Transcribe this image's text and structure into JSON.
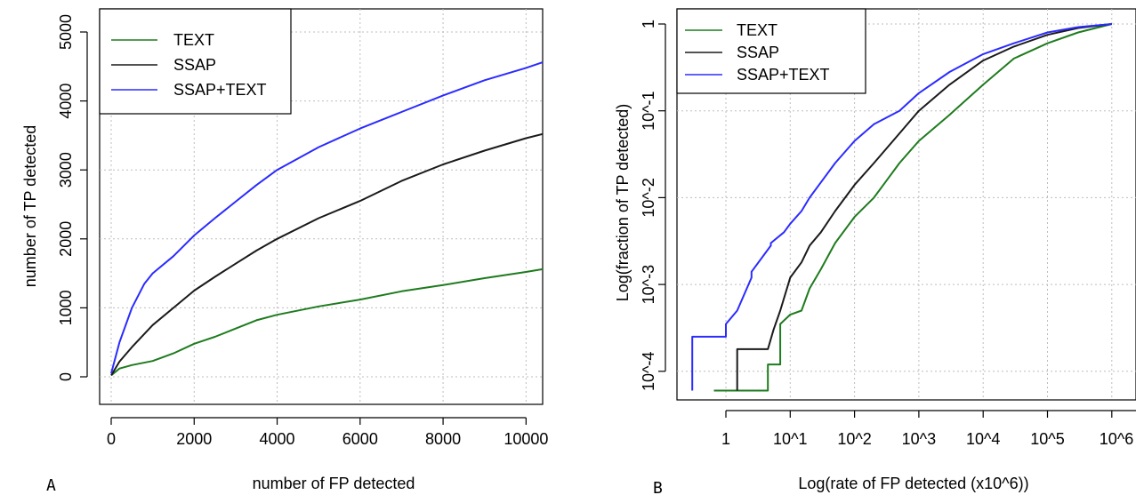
{
  "colors": {
    "text": "#1e7b1e",
    "ssap": "#1a1a1a",
    "ssap_text": "#2b2bff",
    "grid": "#bdbdbd"
  },
  "chart_data": [
    {
      "panel": "A",
      "type": "line",
      "title": "",
      "xlabel": "number of FP detected",
      "ylabel": "number of TP detected",
      "xlim": [
        0,
        10400
      ],
      "ylim": [
        -100,
        5150
      ],
      "xticks": [
        0,
        2000,
        4000,
        6000,
        8000,
        10000
      ],
      "xtick_labels": [
        "0",
        "2000",
        "4000",
        "6000",
        "8000",
        "10000"
      ],
      "yticks": [
        0,
        1000,
        2000,
        3000,
        4000,
        5000
      ],
      "ytick_labels": [
        "0",
        "1000",
        "2000",
        "3000",
        "4000",
        "5000"
      ],
      "grid": true,
      "legend_position": "top-left",
      "series": [
        {
          "name": "TEXT",
          "color_key": "text",
          "x": [
            0,
            200,
            500,
            1000,
            1500,
            2000,
            2500,
            3000,
            3500,
            4000,
            5000,
            6000,
            7000,
            8000,
            9000,
            10000,
            10400
          ],
          "y": [
            20,
            120,
            170,
            230,
            340,
            480,
            580,
            700,
            820,
            900,
            1020,
            1120,
            1240,
            1330,
            1430,
            1520,
            1560
          ]
        },
        {
          "name": "SSAP",
          "color_key": "ssap",
          "x": [
            0,
            200,
            500,
            1000,
            1500,
            2000,
            2500,
            3000,
            3500,
            4000,
            5000,
            6000,
            7000,
            8000,
            9000,
            10000,
            10400
          ],
          "y": [
            20,
            220,
            430,
            750,
            1000,
            1250,
            1450,
            1640,
            1830,
            2000,
            2300,
            2550,
            2840,
            3080,
            3280,
            3460,
            3520
          ]
        },
        {
          "name": "SSAP+TEXT",
          "color_key": "ssap_text",
          "x": [
            0,
            200,
            500,
            800,
            1000,
            1500,
            2000,
            2500,
            3000,
            3500,
            4000,
            5000,
            6000,
            7000,
            8000,
            9000,
            10000,
            10400
          ],
          "y": [
            50,
            500,
            1000,
            1350,
            1500,
            1750,
            2050,
            2300,
            2540,
            2780,
            3000,
            3330,
            3600,
            3840,
            4080,
            4300,
            4480,
            4560
          ]
        }
      ],
      "legend": [
        "TEXT",
        "SSAP",
        "SSAP+TEXT"
      ],
      "panel_label": "A"
    },
    {
      "panel": "B",
      "type": "line",
      "title": "",
      "xlabel": "Log(rate of FP detected (x10^6))",
      "ylabel": "Log(fraction of TP detected)",
      "x_scale": "log10",
      "y_scale": "log10",
      "xlim": [
        0.2,
        1000000
      ],
      "ylim": [
        5e-05,
        1.0
      ],
      "xticks": [
        1,
        10,
        100,
        1000,
        10000,
        100000,
        1000000
      ],
      "xtick_labels": [
        "1",
        "10^1",
        "10^2",
        "10^3",
        "10^4",
        "10^5",
        "10^6"
      ],
      "yticks": [
        0.0001,
        0.001,
        0.01,
        0.1,
        1
      ],
      "ytick_labels": [
        "10^-4",
        "10^-3",
        "10^-2",
        "10^-1",
        "1"
      ],
      "grid": true,
      "legend_position": "top-left",
      "series": [
        {
          "name": "TEXT",
          "color_key": "text",
          "x": [
            0.65,
            1,
            2,
            4.5,
            4.5,
            7,
            7,
            10,
            15,
            20,
            30,
            50,
            100,
            200,
            300,
            500,
            1000,
            3000,
            10000,
            30000,
            100000,
            300000,
            1000000
          ],
          "y": [
            6e-05,
            6e-05,
            6e-05,
            6e-05,
            0.00012,
            0.00012,
            0.00035,
            0.00045,
            0.0005,
            0.0009,
            0.0015,
            0.003,
            0.006,
            0.01,
            0.015,
            0.025,
            0.045,
            0.09,
            0.2,
            0.4,
            0.6,
            0.8,
            1.0
          ]
        },
        {
          "name": "SSAP",
          "color_key": "ssap",
          "x": [
            1.5,
            1.5,
            4.5,
            5.5,
            7,
            10,
            15,
            20,
            30,
            50,
            100,
            200,
            500,
            1000,
            3000,
            10000,
            30000,
            100000,
            300000,
            1000000
          ],
          "y": [
            6e-05,
            0.00018,
            0.00018,
            0.0003,
            0.0005,
            0.0012,
            0.0018,
            0.0028,
            0.004,
            0.007,
            0.014,
            0.025,
            0.055,
            0.1,
            0.2,
            0.38,
            0.55,
            0.75,
            0.9,
            1.0
          ]
        },
        {
          "name": "SSAP+TEXT",
          "color_key": "ssap_text",
          "x": [
            0.3,
            0.3,
            1,
            1,
            1.5,
            2.5,
            2.5,
            5,
            5,
            8,
            10,
            15,
            20,
            30,
            50,
            100,
            200,
            500,
            1000,
            3000,
            10000,
            30000,
            100000,
            300000,
            1000000
          ],
          "y": [
            6e-05,
            0.00025,
            0.00025,
            0.00035,
            0.0005,
            0.0012,
            0.0014,
            0.0028,
            0.003,
            0.004,
            0.005,
            0.007,
            0.01,
            0.015,
            0.025,
            0.045,
            0.07,
            0.1,
            0.16,
            0.28,
            0.45,
            0.6,
            0.8,
            0.92,
            1.0
          ]
        }
      ],
      "legend": [
        "TEXT",
        "SSAP",
        "SSAP+TEXT"
      ],
      "panel_label": "B"
    }
  ]
}
